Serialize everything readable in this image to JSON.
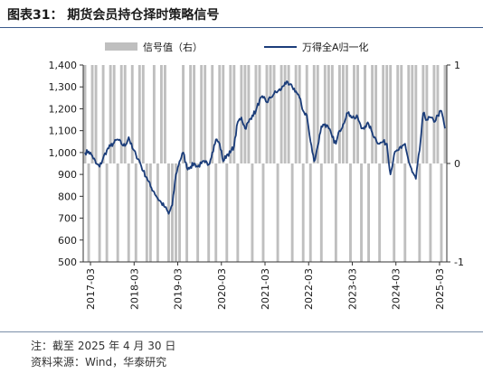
{
  "figure": {
    "title": "图表31：  期货会员持仓择时策略信号",
    "note": "注：截至 2025 年 4 月 30 日",
    "source": "资料来源：Wind，华泰研究"
  },
  "chart_data": {
    "type": "line+bar",
    "title": "",
    "xlabel": "",
    "ylabel": "",
    "left_axis": {
      "ylim": [
        500,
        1400
      ],
      "ticks": [
        "500",
        "600",
        "700",
        "800",
        "900",
        "1,000",
        "1,100",
        "1,200",
        "1,300",
        "1,400"
      ]
    },
    "right_axis": {
      "ylim": [
        -1,
        1
      ],
      "ticks": [
        "-1",
        "0",
        "1"
      ]
    },
    "x_range": [
      "2017-01",
      "2025-05"
    ],
    "x_ticks": [
      "2017-03",
      "2018-03",
      "2019-03",
      "2020-03",
      "2021-03",
      "2022-03",
      "2023-03",
      "2024-03",
      "2025-03"
    ],
    "legend": {
      "placement": "top",
      "entries": [
        "信号值（右）",
        "万得全A归一化"
      ]
    },
    "colors": {
      "signal": "#bfbfbf",
      "line": "#1b3d7a",
      "axis": "#333333"
    },
    "series": [
      {
        "name": "万得全A归一化",
        "axis": "left",
        "x": [
          "2017-01",
          "2017-02",
          "2017-03",
          "2017-04",
          "2017-05",
          "2017-06",
          "2017-07",
          "2017-08",
          "2017-09",
          "2017-10",
          "2017-11",
          "2017-12",
          "2018-01",
          "2018-02",
          "2018-03",
          "2018-04",
          "2018-05",
          "2018-06",
          "2018-07",
          "2018-08",
          "2018-09",
          "2018-10",
          "2018-11",
          "2018-12",
          "2019-01",
          "2019-02",
          "2019-03",
          "2019-04",
          "2019-05",
          "2019-06",
          "2019-07",
          "2019-08",
          "2019-09",
          "2019-10",
          "2019-11",
          "2019-12",
          "2020-01",
          "2020-02",
          "2020-03",
          "2020-04",
          "2020-05",
          "2020-06",
          "2020-07",
          "2020-08",
          "2020-09",
          "2020-10",
          "2020-11",
          "2020-12",
          "2021-01",
          "2021-02",
          "2021-03",
          "2021-04",
          "2021-05",
          "2021-06",
          "2021-07",
          "2021-08",
          "2021-09",
          "2021-10",
          "2021-11",
          "2021-12",
          "2022-01",
          "2022-02",
          "2022-03",
          "2022-04",
          "2022-05",
          "2022-06",
          "2022-07",
          "2022-08",
          "2022-09",
          "2022-10",
          "2022-11",
          "2022-12",
          "2023-01",
          "2023-02",
          "2023-03",
          "2023-04",
          "2023-05",
          "2023-06",
          "2023-07",
          "2023-08",
          "2023-09",
          "2023-10",
          "2023-11",
          "2023-12",
          "2024-01",
          "2024-02",
          "2024-03",
          "2024-04",
          "2024-05",
          "2024-06",
          "2024-07",
          "2024-08",
          "2024-09",
          "2024-10",
          "2024-11",
          "2024-12",
          "2025-01",
          "2025-02",
          "2025-03",
          "2025-04"
        ],
        "values": [
          1000,
          1005,
          985,
          950,
          935,
          975,
          1010,
          1030,
          1045,
          1060,
          1040,
          1030,
          1070,
          1020,
          990,
          960,
          915,
          885,
          845,
          820,
          790,
          770,
          750,
          720,
          760,
          900,
          960,
          1000,
          930,
          935,
          950,
          935,
          950,
          955,
          945,
          1000,
          1060,
          1040,
          960,
          990,
          1000,
          1030,
          1140,
          1160,
          1110,
          1140,
          1170,
          1190,
          1240,
          1250,
          1230,
          1250,
          1270,
          1280,
          1290,
          1320,
          1310,
          1300,
          1280,
          1250,
          1190,
          1170,
          1050,
          960,
          1030,
          1120,
          1130,
          1110,
          1070,
          1040,
          1100,
          1130,
          1180,
          1170,
          1160,
          1160,
          1110,
          1120,
          1130,
          1090,
          1060,
          1040,
          1050,
          1040,
          900,
          990,
          1010,
          1020,
          1040,
          960,
          910,
          880,
          1010,
          1180,
          1150,
          1160,
          1140,
          1170,
          1190,
          1110
        ]
      },
      {
        "name": "信号值（右）",
        "axis": "right",
        "type": "bar",
        "x": [
          "2017-01",
          "2017-02",
          "2017-03",
          "2017-04",
          "2017-05",
          "2017-06",
          "2017-07",
          "2017-08",
          "2017-09",
          "2017-10",
          "2017-11",
          "2017-12",
          "2018-01",
          "2018-02",
          "2018-03",
          "2018-04",
          "2018-05",
          "2018-06",
          "2018-07",
          "2018-08",
          "2018-09",
          "2018-10",
          "2018-11",
          "2018-12",
          "2019-01",
          "2019-02",
          "2019-03",
          "2019-04",
          "2019-05",
          "2019-06",
          "2019-07",
          "2019-08",
          "2019-09",
          "2019-10",
          "2019-11",
          "2019-12",
          "2020-01",
          "2020-02",
          "2020-03",
          "2020-04",
          "2020-05",
          "2020-06",
          "2020-07",
          "2020-08",
          "2020-09",
          "2020-10",
          "2020-11",
          "2020-12",
          "2021-01",
          "2021-02",
          "2021-03",
          "2021-04",
          "2021-05",
          "2021-06",
          "2021-07",
          "2021-08",
          "2021-09",
          "2021-10",
          "2021-11",
          "2021-12",
          "2022-01",
          "2022-02",
          "2022-03",
          "2022-04",
          "2022-05",
          "2022-06",
          "2022-07",
          "2022-08",
          "2022-09",
          "2022-10",
          "2022-11",
          "2022-12",
          "2023-01",
          "2023-02",
          "2023-03",
          "2023-04",
          "2023-05",
          "2023-06",
          "2023-07",
          "2023-08",
          "2023-09",
          "2023-10",
          "2023-11",
          "2023-12",
          "2024-01",
          "2024-02",
          "2024-03",
          "2024-04",
          "2024-05",
          "2024-06",
          "2024-07",
          "2024-08",
          "2024-09",
          "2024-10",
          "2024-11",
          "2024-12",
          "2025-01",
          "2025-02",
          "2025-03",
          "2025-04"
        ],
        "values": [
          1,
          -1,
          1,
          1,
          -1,
          1,
          -1,
          1,
          1,
          -1,
          1,
          1,
          -1,
          1,
          -1,
          1,
          1,
          -1,
          -1,
          1,
          -1,
          1,
          1,
          -1,
          -1,
          -1,
          -1,
          1,
          -1,
          1,
          1,
          -1,
          1,
          1,
          -1,
          1,
          -1,
          1,
          1,
          -1,
          1,
          1,
          -1,
          1,
          1,
          1,
          -1,
          1,
          1,
          -1,
          1,
          1,
          1,
          -1,
          1,
          1,
          1,
          -1,
          1,
          1,
          -1,
          1,
          -1,
          1,
          1,
          -1,
          1,
          1,
          1,
          -1,
          1,
          1,
          1,
          -1,
          1,
          1,
          -1,
          1,
          -1,
          1,
          1,
          -1,
          1,
          1,
          1,
          -1,
          1,
          1,
          -1,
          1,
          1,
          1,
          -1,
          1,
          1,
          -1,
          1,
          1,
          -1,
          1
        ]
      }
    ]
  }
}
